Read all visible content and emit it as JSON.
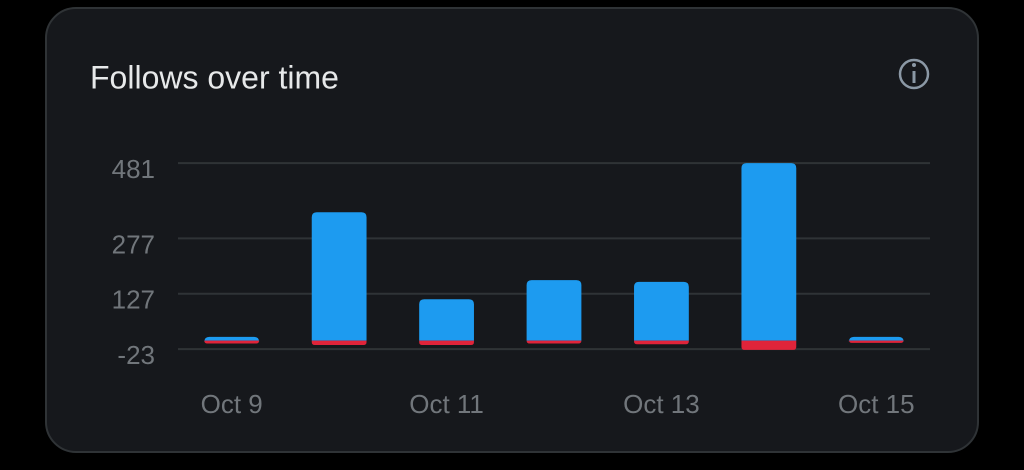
{
  "chart_data": {
    "type": "bar",
    "title": "Follows over time",
    "categories": [
      "Oct 9",
      null,
      "Oct 11",
      null,
      "Oct 13",
      null,
      "Oct 15"
    ],
    "series": [
      {
        "color": "#1d9bf0",
        "values": [
          10,
          348,
          112,
          164,
          159,
          481,
          10
        ]
      },
      {
        "color": "#e0243a",
        "values": [
          -8,
          -12,
          -12,
          -8,
          -10,
          -25,
          -6
        ]
      }
    ],
    "ylim": [
      -58,
      503
    ],
    "yticks": [
      -23,
      127,
      277,
      481
    ],
    "grid": true
  }
}
